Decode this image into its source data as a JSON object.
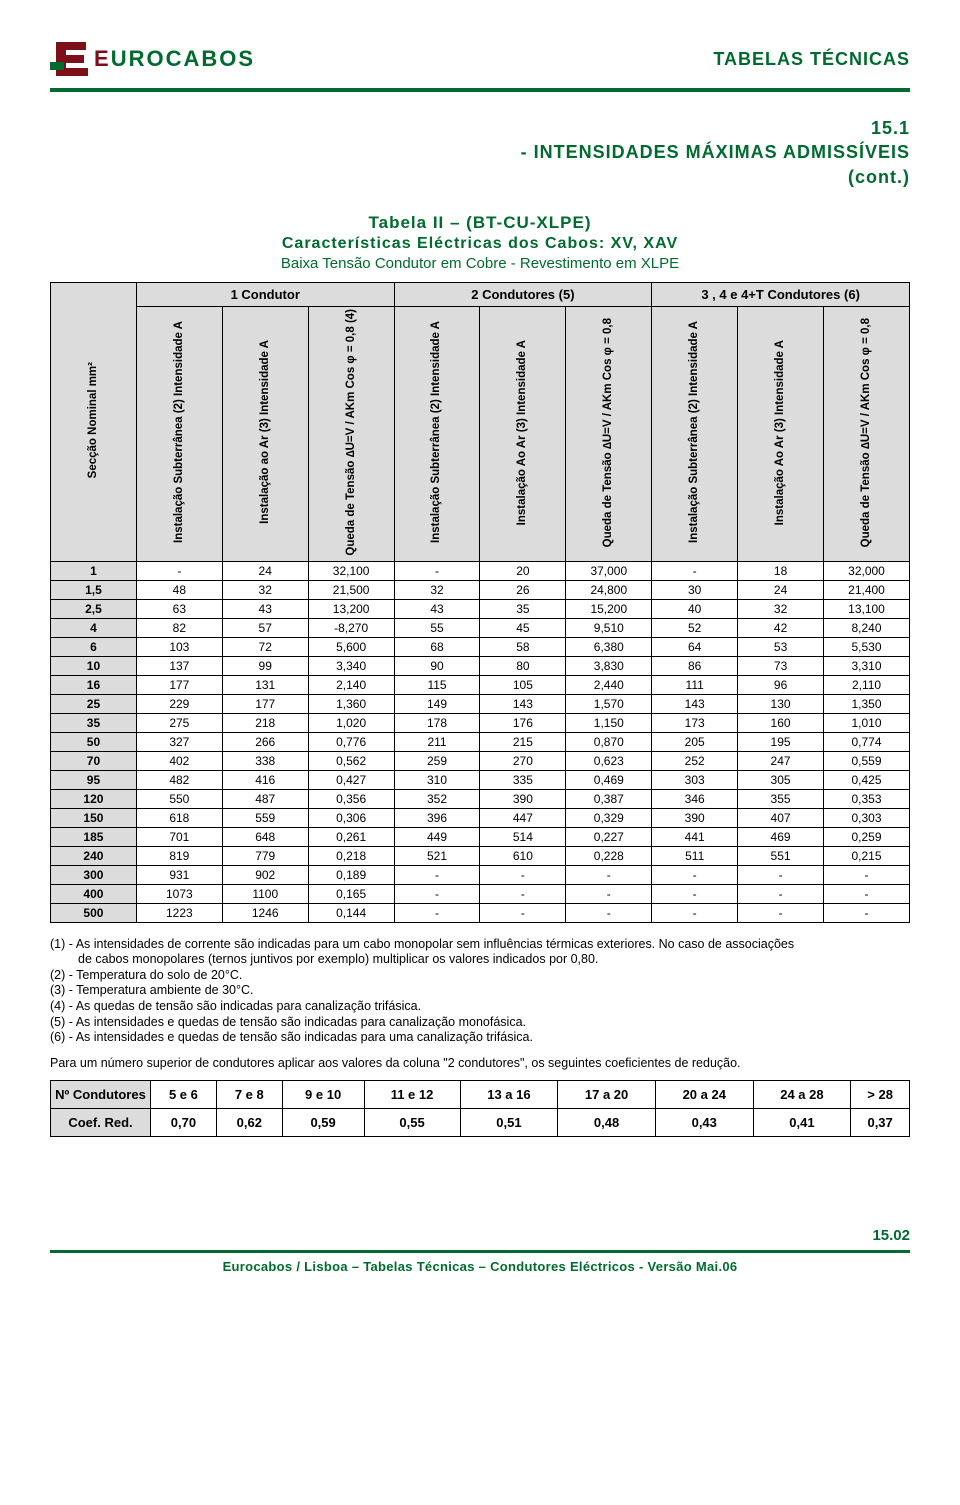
{
  "header": {
    "logo_dark": "E",
    "logo_green": "UROCABOS",
    "right": "TABELAS TÉCNICAS"
  },
  "title": {
    "num": "15.1",
    "line": "- INTENSIDADES MÁXIMAS ADMISSÍVEIS",
    "cont": "(cont.)"
  },
  "subtitle": {
    "t1": "Tabela II – (BT-CU-XLPE)",
    "t2": "Características Eléctricas dos Cabos: XV, XAV",
    "t3": "Baixa Tensão Condutor em Cobre  - Revestimento em XLPE"
  },
  "table": {
    "group_headers": [
      "1 Condutor",
      "2 Condutores (5)",
      "3 , 4 e 4+T Condutores (6)"
    ],
    "row_headers": {
      "sec": "Secção Nominal\nmm²",
      "sub": "Instalação\nSubterrânea (2)\nIntensidade\nA",
      "ar1": "Instalação ao Ar (3)\nIntensidade\nA",
      "q1": "Queda de Tensão\n∆U=V / AKm\nCos φ = 0,8\n(4)",
      "ar": "Instalação Ao Ar (3)\nIntensidade\nA",
      "q": "Queda de Tensão\n∆U=V / AKm\nCos φ = 0,8"
    },
    "rows": [
      {
        "sec": "1",
        "c": [
          "-",
          "24",
          "32,100",
          "-",
          "20",
          "37,000",
          "-",
          "18",
          "32,000"
        ]
      },
      {
        "sec": "1,5",
        "c": [
          "48",
          "32",
          "21,500",
          "32",
          "26",
          "24,800",
          "30",
          "24",
          "21,400"
        ]
      },
      {
        "sec": "2,5",
        "c": [
          "63",
          "43",
          "13,200",
          "43",
          "35",
          "15,200",
          "40",
          "32",
          "13,100"
        ]
      },
      {
        "sec": "4",
        "c": [
          "82",
          "57",
          "-8,270",
          "55",
          "45",
          "9,510",
          "52",
          "42",
          "8,240"
        ]
      },
      {
        "sec": "6",
        "c": [
          "103",
          "72",
          "5,600",
          "68",
          "58",
          "6,380",
          "64",
          "53",
          "5,530"
        ]
      },
      {
        "sec": "10",
        "c": [
          "137",
          "99",
          "3,340",
          "90",
          "80",
          "3,830",
          "86",
          "73",
          "3,310"
        ]
      },
      {
        "sec": "16",
        "c": [
          "177",
          "131",
          "2,140",
          "115",
          "105",
          "2,440",
          "111",
          "96",
          "2,110"
        ]
      },
      {
        "sec": "25",
        "c": [
          "229",
          "177",
          "1,360",
          "149",
          "143",
          "1,570",
          "143",
          "130",
          "1,350"
        ]
      },
      {
        "sec": "35",
        "c": [
          "275",
          "218",
          "1,020",
          "178",
          "176",
          "1,150",
          "173",
          "160",
          "1,010"
        ]
      },
      {
        "sec": "50",
        "c": [
          "327",
          "266",
          "0,776",
          "211",
          "215",
          "0,870",
          "205",
          "195",
          "0,774"
        ]
      },
      {
        "sec": "70",
        "c": [
          "402",
          "338",
          "0,562",
          "259",
          "270",
          "0,623",
          "252",
          "247",
          "0,559"
        ]
      },
      {
        "sec": "95",
        "c": [
          "482",
          "416",
          "0,427",
          "310",
          "335",
          "0,469",
          "303",
          "305",
          "0,425"
        ]
      },
      {
        "sec": "120",
        "c": [
          "550",
          "487",
          "0,356",
          "352",
          "390",
          "0,387",
          "346",
          "355",
          "0,353"
        ]
      },
      {
        "sec": "150",
        "c": [
          "618",
          "559",
          "0,306",
          "396",
          "447",
          "0,329",
          "390",
          "407",
          "0,303"
        ]
      },
      {
        "sec": "185",
        "c": [
          "701",
          "648",
          "0,261",
          "449",
          "514",
          "0,227",
          "441",
          "469",
          "0,259"
        ]
      },
      {
        "sec": "240",
        "c": [
          "819",
          "779",
          "0,218",
          "521",
          "610",
          "0,228",
          "511",
          "551",
          "0,215"
        ]
      },
      {
        "sec": "300",
        "c": [
          "931",
          "902",
          "0,189",
          "-",
          "-",
          "-",
          "-",
          "-",
          "-"
        ]
      },
      {
        "sec": "400",
        "c": [
          "1073",
          "1100",
          "0,165",
          "-",
          "-",
          "-",
          "-",
          "-",
          "-"
        ]
      },
      {
        "sec": "500",
        "c": [
          "1223",
          "1246",
          "0,144",
          "-",
          "-",
          "-",
          "-",
          "-",
          "-"
        ]
      }
    ]
  },
  "notes": {
    "n1a": "(1) - As intensidades de corrente são indicadas para um cabo monopolar sem influências térmicas exteriores. No caso de associações",
    "n1b": "de cabos monopolares (ternos juntivos por exemplo) multiplicar os valores indicados por 0,80.",
    "n2": "(2) - Temperatura do solo de 20°C.",
    "n3": "(3) - Temperatura ambiente de 30°C.",
    "n4": "(4) - As quedas de tensão são indicadas para canalização trifásica.",
    "n5": "(5) - As intensidades e quedas de tensão são indicadas para canalização monofásica.",
    "n6": "(6) - As intensidades e quedas de tensão são indicadas para uma canalização trifásica.",
    "para": "Para um número superior de condutores aplicar aos valores da coluna \"2 condutores\", os seguintes coeficientes de redução."
  },
  "coef": {
    "row1_label": "Nº Condutores",
    "row1": [
      "5 e 6",
      "7 e 8",
      "9 e 10",
      "11 e 12",
      "13 a 16",
      "17 a 20",
      "20 a 24",
      "24 a 28",
      "> 28"
    ],
    "row2_label": "Coef. Red.",
    "row2": [
      "0,70",
      "0,62",
      "0,59",
      "0,55",
      "0,51",
      "0,48",
      "0,43",
      "0,41",
      "0,37"
    ]
  },
  "footer": {
    "pagenum": "15.02",
    "text": "Eurocabos / Lisboa – Tabelas Técnicas – Condutores Eléctricos -  Versão Mai.06"
  },
  "colors": {
    "green": "#006b2e",
    "dark_red": "#7d0f18",
    "header_bg": "#dcdcdc"
  },
  "typography": {
    "body_font": "Arial, Helvetica, sans-serif",
    "title_size_pt": 14,
    "table_size_pt": 9,
    "notes_size_pt": 9.5
  }
}
